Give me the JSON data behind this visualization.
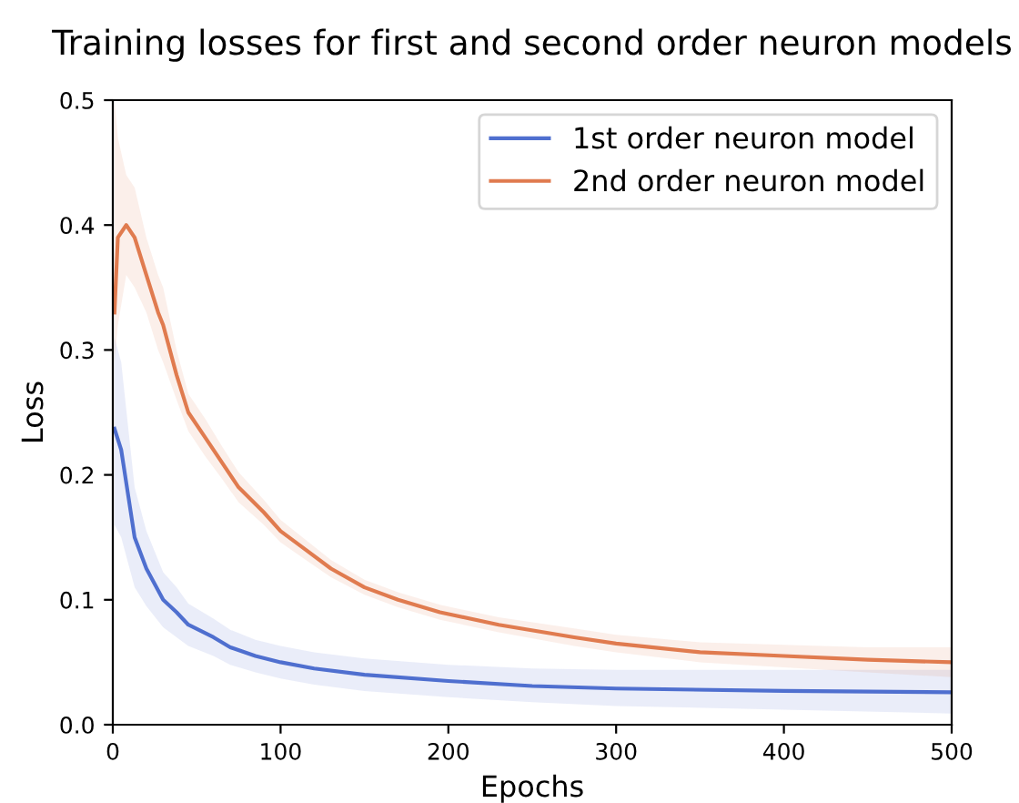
{
  "chart_data": {
    "type": "line",
    "title": "Training losses for first and second order neuron models",
    "xlabel": "Epochs",
    "ylabel": "Loss",
    "xlim": [
      0,
      500
    ],
    "ylim": [
      0,
      0.5
    ],
    "xticks": [
      0,
      100,
      200,
      300,
      400,
      500
    ],
    "yticks": [
      {
        "value": 0,
        "label": "0.0"
      },
      0.1,
      0.2,
      0.3,
      0.4,
      0.5
    ],
    "grid": false,
    "legend": "top right",
    "marker": "none",
    "line_style": "solid",
    "series": [
      {
        "name": "1st order neuron model",
        "color": "#4f6fcf",
        "x": [
          1,
          5,
          13,
          20,
          30,
          38,
          45,
          60,
          70,
          85,
          100,
          120,
          150,
          200,
          250,
          300,
          400,
          500
        ],
        "values": [
          0.237,
          0.22,
          0.15,
          0.125,
          0.1,
          0.09,
          0.08,
          0.07,
          0.062,
          0.055,
          0.05,
          0.045,
          0.04,
          0.035,
          0.031,
          0.029,
          0.027,
          0.026
        ],
        "lower": [
          0.16,
          0.15,
          0.11,
          0.095,
          0.078,
          0.07,
          0.063,
          0.055,
          0.048,
          0.042,
          0.037,
          0.032,
          0.027,
          0.022,
          0.018,
          0.015,
          0.012,
          0.009
        ],
        "upper": [
          0.31,
          0.29,
          0.19,
          0.155,
          0.122,
          0.11,
          0.097,
          0.085,
          0.076,
          0.068,
          0.063,
          0.058,
          0.053,
          0.048,
          0.045,
          0.044,
          0.044,
          0.044
        ]
      },
      {
        "name": "2nd order neuron model",
        "color": "#e07b4f",
        "x": [
          1,
          3,
          8,
          13,
          20,
          27,
          30,
          38,
          45,
          55,
          65,
          75,
          90,
          100,
          115,
          130,
          150,
          170,
          195,
          230,
          275,
          300,
          350,
          400,
          450,
          500
        ],
        "values": [
          0.33,
          0.39,
          0.4,
          0.39,
          0.36,
          0.33,
          0.32,
          0.28,
          0.25,
          0.23,
          0.21,
          0.19,
          0.17,
          0.155,
          0.14,
          0.125,
          0.11,
          0.1,
          0.09,
          0.08,
          0.07,
          0.065,
          0.058,
          0.055,
          0.052,
          0.05
        ],
        "lower": [
          0.29,
          0.32,
          0.36,
          0.35,
          0.33,
          0.3,
          0.29,
          0.26,
          0.235,
          0.215,
          0.197,
          0.178,
          0.16,
          0.146,
          0.132,
          0.118,
          0.104,
          0.094,
          0.084,
          0.074,
          0.063,
          0.058,
          0.05,
          0.046,
          0.042,
          0.038
        ],
        "upper": [
          0.5,
          0.47,
          0.44,
          0.43,
          0.39,
          0.36,
          0.35,
          0.3,
          0.265,
          0.245,
          0.223,
          0.202,
          0.18,
          0.164,
          0.148,
          0.132,
          0.116,
          0.106,
          0.096,
          0.086,
          0.077,
          0.072,
          0.066,
          0.064,
          0.062,
          0.062
        ]
      }
    ]
  }
}
